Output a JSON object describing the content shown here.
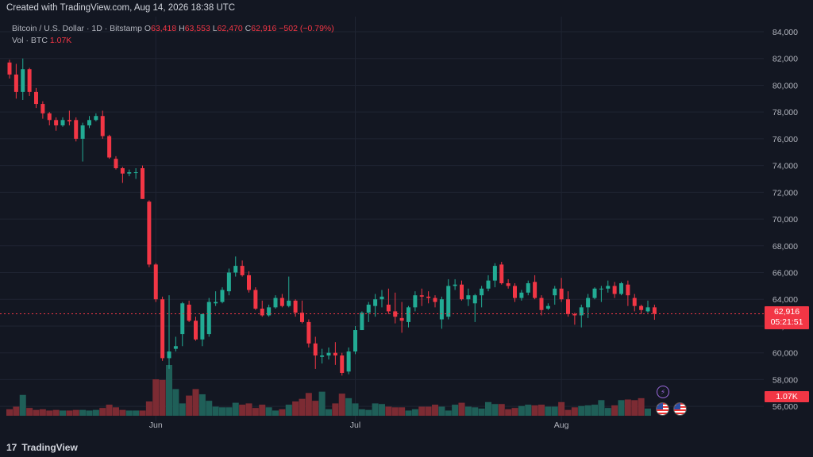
{
  "header": {
    "created": "Created with TradingView.com, Aug 14, 2026 18:38 UTC"
  },
  "legend": {
    "symbol": "Bitcoin / U.S. Dollar · 1D · Bitstamp",
    "o_label": "O",
    "o_value": "63,418",
    "h_label": "H",
    "h_value": "63,553",
    "l_label": "L",
    "l_value": "62,470",
    "c_label": "C",
    "c_value": "62,916",
    "change": "−502 (−0.79%)",
    "vol_label": "Vol · BTC",
    "vol_value": "1.07K"
  },
  "price_tag": {
    "price": "62,916",
    "countdown": "05:21:51"
  },
  "volume_tag": "1.07K",
  "footer": {
    "brand": "TradingView",
    "logo_glyph": "17"
  },
  "colors": {
    "up": "#22ab94",
    "down": "#f23645",
    "background": "#131722",
    "grid": "#1f2432",
    "vol_up": "#1f5f58",
    "vol_down": "#7c2b33"
  },
  "chart_data": {
    "type": "candlestick",
    "ylim": [
      55000,
      85000
    ],
    "y_ticks": [
      "84,000",
      "82,000",
      "80,000",
      "78,000",
      "76,000",
      "74,000",
      "72,000",
      "70,000",
      "68,000",
      "66,000",
      "64,000",
      "62,000",
      "60,000",
      "58,000",
      "56,000"
    ],
    "y_tick_values": [
      84000,
      82000,
      80000,
      78000,
      76000,
      74000,
      72000,
      70000,
      68000,
      66000,
      64000,
      62000,
      60000,
      58000,
      56000
    ],
    "x_ticks": [
      {
        "label": "Jun",
        "index": 22
      },
      {
        "label": "Jul",
        "index": 52
      },
      {
        "label": "Aug",
        "index": 83
      }
    ],
    "candles": [
      [
        81700,
        81900,
        80500,
        80800
      ],
      [
        80800,
        81600,
        79000,
        79500
      ],
      [
        79500,
        82000,
        78900,
        81200
      ],
      [
        81200,
        81300,
        79200,
        79500
      ],
      [
        79500,
        79800,
        78300,
        78600
      ],
      [
        78600,
        78800,
        77500,
        77900
      ],
      [
        77900,
        78000,
        77000,
        77400
      ],
      [
        77400,
        77600,
        76600,
        77000
      ],
      [
        77000,
        77600,
        76900,
        77400
      ],
      [
        77400,
        78100,
        77000,
        77300
      ],
      [
        77400,
        77600,
        75800,
        76000
      ],
      [
        76000,
        77200,
        74300,
        77000
      ],
      [
        77000,
        77700,
        76800,
        77400
      ],
      [
        77400,
        77900,
        77300,
        77700
      ],
      [
        77700,
        78100,
        76000,
        76200
      ],
      [
        76200,
        76300,
        74500,
        74600
      ],
      [
        74500,
        74700,
        73700,
        73800
      ],
      [
        73800,
        73900,
        72700,
        73400
      ],
      [
        73400,
        73700,
        73200,
        73500
      ],
      [
        73500,
        73800,
        73000,
        73500
      ],
      [
        73800,
        74000,
        71500,
        71500
      ],
      [
        71300,
        71400,
        66400,
        66600
      ],
      [
        66600,
        66700,
        63800,
        64000
      ],
      [
        64000,
        64200,
        59400,
        59600
      ],
      [
        59600,
        64300,
        58800,
        60100
      ],
      [
        60300,
        61200,
        60100,
        60500
      ],
      [
        61400,
        63800,
        60500,
        63700
      ],
      [
        63600,
        63900,
        62300,
        62400
      ],
      [
        62400,
        62700,
        60900,
        61000
      ],
      [
        61000,
        62900,
        60500,
        62900
      ],
      [
        61400,
        64100,
        61200,
        63800
      ],
      [
        63700,
        64600,
        63500,
        63800
      ],
      [
        63800,
        64900,
        63700,
        64700
      ],
      [
        64600,
        66300,
        64300,
        66000
      ],
      [
        66000,
        67200,
        65700,
        66500
      ],
      [
        66500,
        66900,
        65700,
        65800
      ],
      [
        65800,
        66100,
        64500,
        64700
      ],
      [
        64700,
        64900,
        63200,
        63300
      ],
      [
        63300,
        63900,
        62700,
        62800
      ],
      [
        62800,
        63600,
        62700,
        63400
      ],
      [
        63400,
        64300,
        63300,
        64100
      ],
      [
        64100,
        64400,
        63400,
        63500
      ],
      [
        63500,
        65700,
        63400,
        63900
      ],
      [
        63900,
        64000,
        62700,
        63000
      ],
      [
        63000,
        63900,
        62200,
        62300
      ],
      [
        62300,
        62500,
        60400,
        60700
      ],
      [
        60700,
        61200,
        58800,
        59800
      ],
      [
        59700,
        60300,
        59200,
        59800
      ],
      [
        59800,
        60400,
        59500,
        60000
      ],
      [
        60000,
        60800,
        59100,
        59800
      ],
      [
        59800,
        60000,
        58300,
        58500
      ],
      [
        58600,
        60400,
        58400,
        60100
      ],
      [
        60100,
        62000,
        59900,
        61700
      ],
      [
        61700,
        63100,
        61700,
        63000
      ],
      [
        63000,
        63800,
        62300,
        63600
      ],
      [
        63500,
        64400,
        62700,
        64000
      ],
      [
        64000,
        64700,
        63400,
        64200
      ],
      [
        63600,
        64800,
        62900,
        63100
      ],
      [
        63100,
        64500,
        62200,
        62700
      ],
      [
        62600,
        63800,
        61500,
        62400
      ],
      [
        62300,
        63500,
        61900,
        63400
      ],
      [
        63400,
        64600,
        63100,
        64300
      ],
      [
        64300,
        64800,
        63500,
        64200
      ],
      [
        64200,
        64600,
        63700,
        64100
      ],
      [
        64100,
        64300,
        63400,
        63800
      ],
      [
        62500,
        64200,
        61800,
        64000
      ],
      [
        62700,
        65500,
        62500,
        65000
      ],
      [
        65000,
        65500,
        64700,
        65100
      ],
      [
        65100,
        65400,
        63900,
        64000
      ],
      [
        64000,
        64800,
        63500,
        64300
      ],
      [
        63700,
        64400,
        62300,
        64300
      ],
      [
        64300,
        65000,
        63400,
        64800
      ],
      [
        64800,
        65800,
        64600,
        65400
      ],
      [
        65400,
        66700,
        64900,
        66500
      ],
      [
        66600,
        66800,
        65100,
        65200
      ],
      [
        65200,
        65500,
        64800,
        65000
      ],
      [
        65000,
        65200,
        63800,
        64100
      ],
      [
        64100,
        64700,
        63900,
        64500
      ],
      [
        64500,
        65400,
        64300,
        65200
      ],
      [
        65300,
        65800,
        64000,
        64100
      ],
      [
        64100,
        64300,
        62800,
        63200
      ],
      [
        63300,
        63700,
        63200,
        63500
      ],
      [
        64300,
        65000,
        63600,
        64800
      ],
      [
        64800,
        65600,
        63800,
        64000
      ],
      [
        64000,
        64600,
        62700,
        62900
      ],
      [
        62900,
        63000,
        62100,
        62800
      ],
      [
        62800,
        63600,
        61900,
        63400
      ],
      [
        63400,
        64400,
        62600,
        64100
      ],
      [
        64100,
        64900,
        64000,
        64800
      ],
      [
        64800,
        65000,
        63800,
        64800
      ],
      [
        64800,
        65400,
        64500,
        65000
      ],
      [
        65000,
        65300,
        64100,
        64400
      ],
      [
        64400,
        65300,
        64300,
        65200
      ],
      [
        65100,
        65400,
        63500,
        64300
      ],
      [
        64100,
        64400,
        63100,
        63500
      ],
      [
        63500,
        63600,
        62900,
        63200
      ],
      [
        63100,
        63900,
        63000,
        63400
      ],
      [
        63400,
        63600,
        62470,
        62916
      ]
    ],
    "volume": [
      1.0,
      1.4,
      3.2,
      1.2,
      0.9,
      1.0,
      0.8,
      0.9,
      0.8,
      0.8,
      0.9,
      0.9,
      0.8,
      0.9,
      1.2,
      1.7,
      1.3,
      0.9,
      0.8,
      0.8,
      0.8,
      2.2,
      5.6,
      5.5,
      7.8,
      4.1,
      1.9,
      3.1,
      4.1,
      3.3,
      2.3,
      1.4,
      1.3,
      1.3,
      2.0,
      1.7,
      1.9,
      1.2,
      1.7,
      1.3,
      0.8,
      1.0,
      1.7,
      2.2,
      2.6,
      3.5,
      2.3,
      3.7,
      1.0,
      1.9,
      3.4,
      2.7,
      1.9,
      1.0,
      0.9,
      1.9,
      1.8,
      1.4,
      1.3,
      1.3,
      0.8,
      1.0,
      1.4,
      1.4,
      1.7,
      1.4,
      0.8,
      1.7,
      2.0,
      1.4,
      1.3,
      1.1,
      2.1,
      1.8,
      1.8,
      1.0,
      1.2,
      1.5,
      1.7,
      1.6,
      1.7,
      1.4,
      1.4,
      2.1,
      0.9,
      1.3,
      1.5,
      1.6,
      1.7,
      2.4,
      1.2,
      1.6,
      2.4,
      2.5,
      2.4,
      2.7,
      1.1
    ]
  }
}
